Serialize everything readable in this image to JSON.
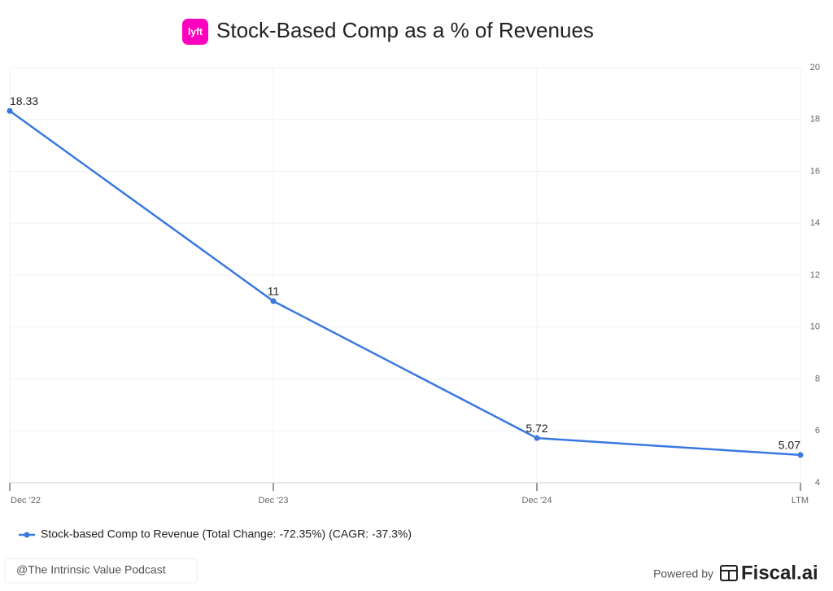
{
  "chart_data": {
    "type": "line",
    "title": "Stock-Based Comp as a % of Revenues",
    "logo_text": "lyft",
    "categories": [
      "Dec '22",
      "Dec '23",
      "Dec '24",
      "LTM"
    ],
    "series": [
      {
        "name": "Stock-based Comp to Revenue (Total Change: -72.35%) (CAGR: -37.3%)",
        "color": "#3a78e0",
        "values": [
          18.33,
          11,
          5.72,
          5.07
        ]
      }
    ],
    "ylim": [
      4,
      20
    ],
    "yticks": [
      4,
      6,
      8,
      10,
      12,
      14,
      16,
      18,
      20
    ],
    "grid": true
  },
  "footer": {
    "credit": "@The Intrinsic Value Podcast",
    "powered_by": "Powered by",
    "brand": "Fiscal.ai"
  }
}
